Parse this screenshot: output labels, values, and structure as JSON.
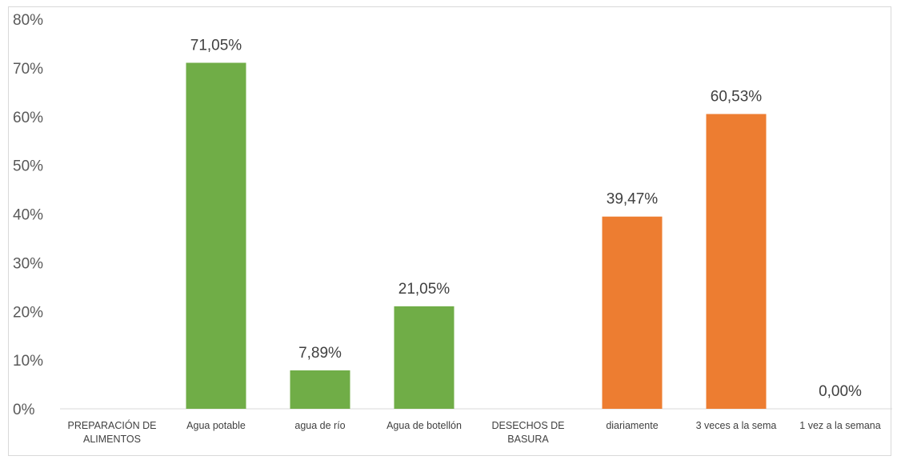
{
  "chart_data": {
    "type": "bar",
    "title": "",
    "xlabel": "",
    "ylabel": "",
    "ylim": [
      0,
      80
    ],
    "y_ticks": [
      "0%",
      "10%",
      "20%",
      "30%",
      "40%",
      "50%",
      "60%",
      "70%",
      "80%"
    ],
    "grid": false,
    "categories": [
      [
        "PREPARACIÓN DE",
        "ALIMENTOS"
      ],
      [
        "Agua potable"
      ],
      [
        "agua de río"
      ],
      [
        "Agua de botellón"
      ],
      [
        "DESECHOS DE",
        "BASURA"
      ],
      [
        "diariamente"
      ],
      [
        "3 veces a la sema"
      ],
      [
        "1 vez a la semana"
      ]
    ],
    "values": [
      null,
      71.05,
      7.89,
      21.05,
      null,
      39.47,
      60.53,
      0.0
    ],
    "data_labels": [
      "",
      "71,05%",
      "7,89%",
      "21,05%",
      "",
      "39,47%",
      "60,53%",
      "0,00%"
    ],
    "bar_colors": [
      "#70ad47",
      "#70ad47",
      "#70ad47",
      "#70ad47",
      "#ed7d31",
      "#ed7d31",
      "#ed7d31",
      "#ed7d31"
    ]
  }
}
